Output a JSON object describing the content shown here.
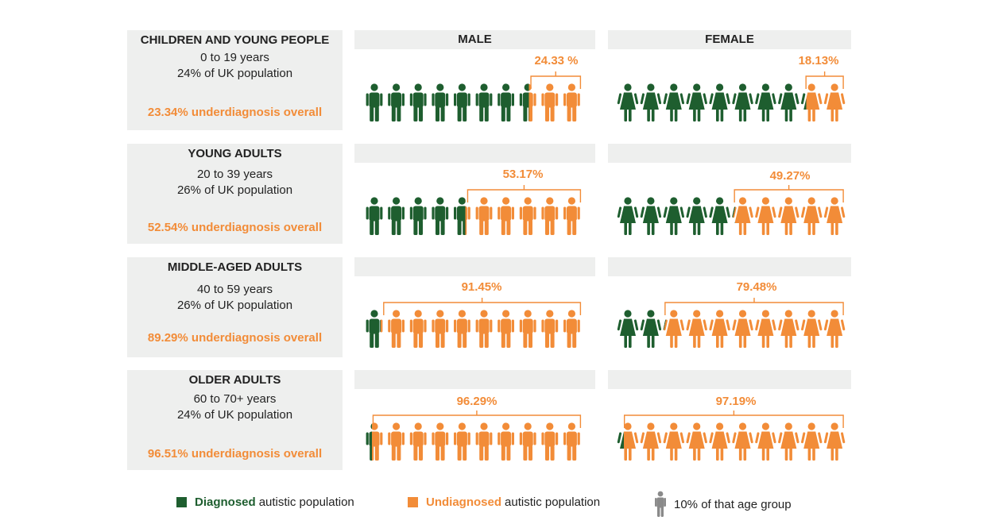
{
  "headers": {
    "male": "MALE",
    "female": "FEMALE"
  },
  "colors": {
    "diagnosed": "#1e5e2f",
    "undiagnosed": "#f28c38",
    "reference": "#8a8a8a",
    "panel": "#eeefee"
  },
  "legend": {
    "diagnosed_bold": "Diagnosed",
    "diagnosed_rest": "autistic population",
    "undiagnosed_bold": "Undiagnosed",
    "undiagnosed_rest": "autistic population",
    "reference_icon": "person-icon",
    "reference_text": "10% of that age group"
  },
  "chart_data": {
    "type": "pictogram",
    "unit": "10% of that age group",
    "rows": [
      {
        "title": "CHILDREN AND YOUNG PEOPLE",
        "ages": "0 to 19 years",
        "population": "24% of UK population",
        "overall": "23.34% underdiagnosis overall",
        "male_label": "24.33 %",
        "male_value": 24.33,
        "female_label": "18.13%",
        "female_value": 18.13
      },
      {
        "title": "YOUNG ADULTS",
        "ages": "20 to 39 years",
        "population": "26% of UK population",
        "overall": "52.54% underdiagnosis overall",
        "male_label": "53.17%",
        "male_value": 53.17,
        "female_label": "49.27%",
        "female_value": 49.27
      },
      {
        "title": "MIDDLE-AGED ADULTS",
        "ages": "40 to 59 years",
        "population": "26% of UK population",
        "overall": "89.29% underdiagnosis overall",
        "male_label": "91.45%",
        "male_value": 91.45,
        "female_label": "79.48%",
        "female_value": 79.48
      },
      {
        "title": "OLDER ADULTS",
        "ages": "60 to 70+ years",
        "population": "24% of UK population",
        "overall": "96.51% underdiagnosis overall",
        "male_label": "96.29%",
        "male_value": 96.29,
        "female_label": "97.19%",
        "female_value": 97.19
      }
    ]
  }
}
